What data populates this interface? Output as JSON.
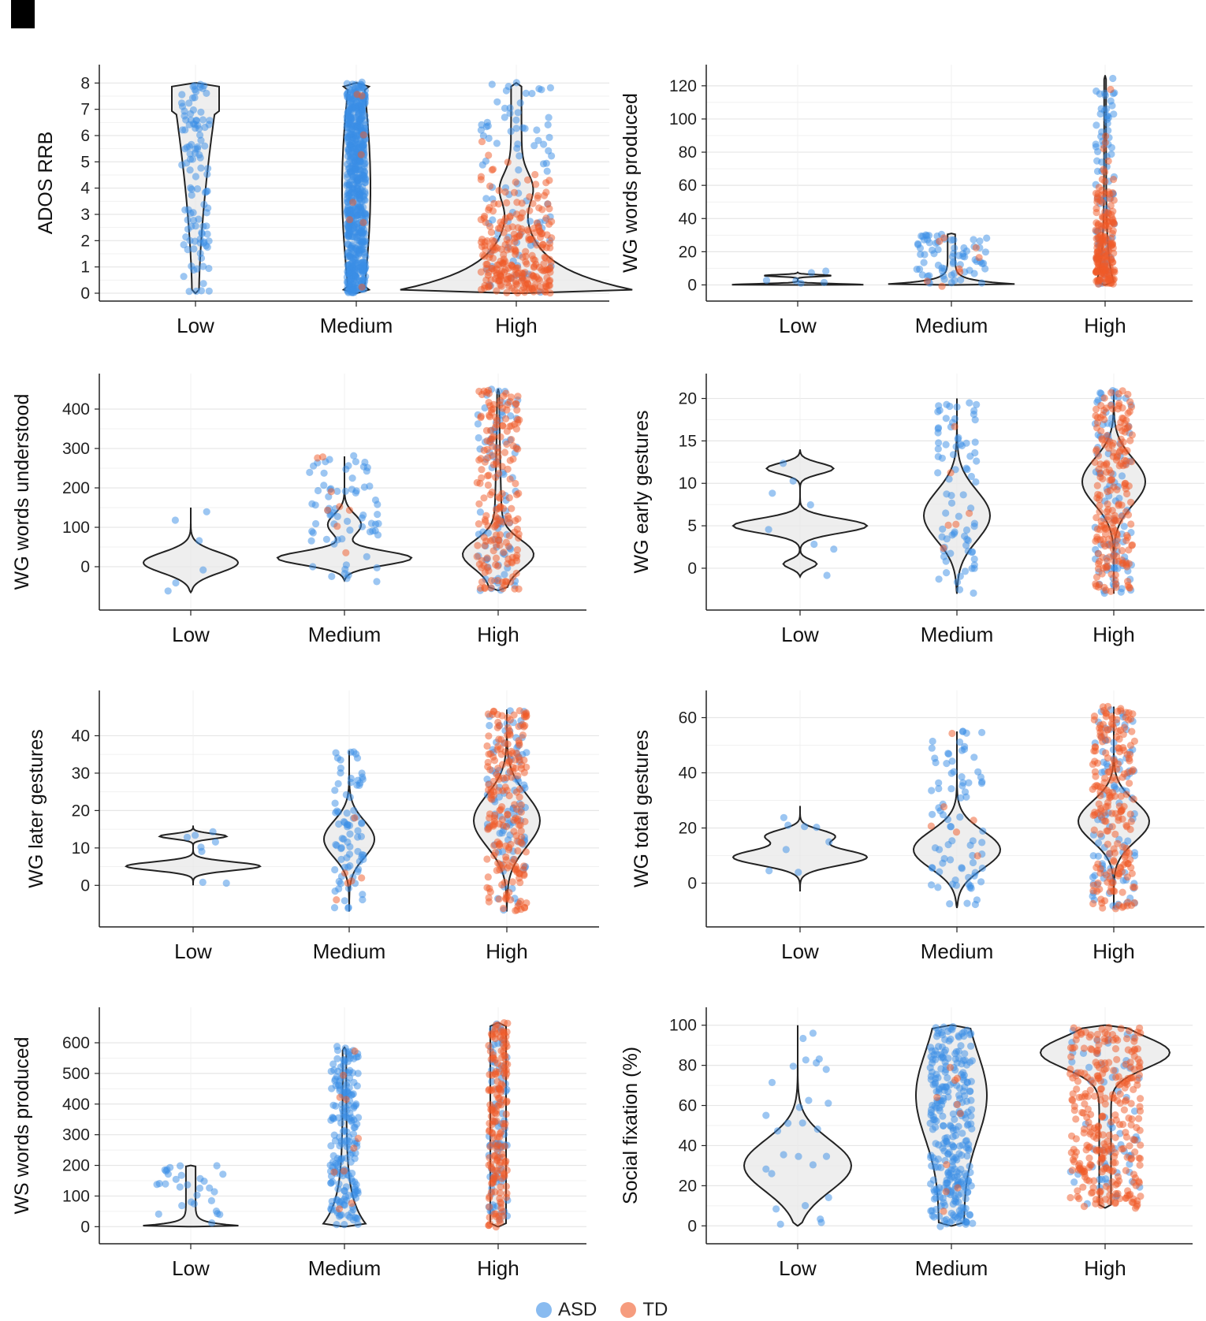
{
  "categories": [
    "Low",
    "Medium",
    "High"
  ],
  "legend": [
    {
      "label": "ASD",
      "color": "#3a8ee6"
    },
    {
      "label": "TD",
      "color": "#f05a28"
    }
  ],
  "colors": {
    "asd": "#3a8ee6",
    "td": "#f05a28",
    "violin_fill": "#e8e8e8",
    "violin_stroke": "#222222",
    "grid": "#e6e6e6"
  },
  "chart_data": [
    {
      "type": "violin+jitter",
      "ylabel": "ADOS RRB",
      "ylim": [
        0,
        8.4
      ],
      "yticks": [
        0,
        1,
        2,
        3,
        4,
        5,
        6,
        7,
        8
      ],
      "categories": [
        "Low",
        "Medium",
        "High"
      ],
      "groups": [
        {
          "category": "Low",
          "range": [
            0,
            8
          ],
          "n_asd": 110,
          "n_td": 0
        },
        {
          "category": "Medium",
          "range": [
            0,
            8
          ],
          "n_asd": 620,
          "n_td": 8
        },
        {
          "category": "High",
          "range": [
            0,
            8
          ],
          "n_asd": 90,
          "n_td": 260
        }
      ]
    },
    {
      "type": "violin+jitter",
      "ylabel": "WG words produced",
      "ylim": [
        -5,
        128
      ],
      "yticks": [
        0,
        20,
        40,
        60,
        80,
        100,
        120
      ],
      "categories": [
        "Low",
        "Medium",
        "High"
      ],
      "groups": [
        {
          "category": "Low",
          "range": [
            0,
            8
          ],
          "n_asd": 6,
          "n_td": 0
        },
        {
          "category": "Medium",
          "range": [
            0,
            31
          ],
          "n_asd": 70,
          "n_td": 8
        },
        {
          "category": "High",
          "range": [
            0,
            126
          ],
          "n_asd": 80,
          "n_td": 180
        }
      ]
    },
    {
      "type": "violin+jitter",
      "ylabel": "WG words understood",
      "ylim": [
        -90,
        470
      ],
      "yticks": [
        0,
        100,
        200,
        300,
        400
      ],
      "categories": [
        "Low",
        "Medium",
        "High"
      ],
      "groups": [
        {
          "category": "Low",
          "range": [
            -65,
            150
          ],
          "n_asd": 6,
          "n_td": 0
        },
        {
          "category": "Medium",
          "range": [
            -35,
            280
          ],
          "n_asd": 70,
          "n_td": 8
        },
        {
          "category": "High",
          "range": [
            -60,
            450
          ],
          "n_asd": 80,
          "n_td": 180
        }
      ]
    },
    {
      "type": "violin+jitter",
      "ylabel": "WG early gestures",
      "ylim": [
        -4,
        22
      ],
      "yticks": [
        0,
        5,
        10,
        15,
        20
      ],
      "categories": [
        "Low",
        "Medium",
        "High"
      ],
      "groups": [
        {
          "category": "Low",
          "range": [
            -1,
            14
          ],
          "n_asd": 8,
          "n_td": 0
        },
        {
          "category": "Medium",
          "range": [
            -3,
            20
          ],
          "n_asd": 80,
          "n_td": 6
        },
        {
          "category": "High",
          "range": [
            -3,
            21
          ],
          "n_asd": 90,
          "n_td": 200
        }
      ]
    },
    {
      "type": "violin+jitter",
      "ylabel": "WG later gestures",
      "ylim": [
        -9,
        50
      ],
      "yticks": [
        0,
        10,
        20,
        30,
        40
      ],
      "categories": [
        "Low",
        "Medium",
        "High"
      ],
      "groups": [
        {
          "category": "Low",
          "range": [
            0,
            16
          ],
          "n_asd": 8,
          "n_td": 0
        },
        {
          "category": "Medium",
          "range": [
            -7,
            36
          ],
          "n_asd": 80,
          "n_td": 6
        },
        {
          "category": "High",
          "range": [
            -7,
            47
          ],
          "n_asd": 90,
          "n_td": 200
        }
      ]
    },
    {
      "type": "violin+jitter",
      "ylabel": "WG total gestures",
      "ylim": [
        -13,
        67
      ],
      "yticks": [
        0,
        20,
        40,
        60
      ],
      "categories": [
        "Low",
        "Medium",
        "High"
      ],
      "groups": [
        {
          "category": "Low",
          "range": [
            -3,
            28
          ],
          "n_asd": 8,
          "n_td": 0
        },
        {
          "category": "Medium",
          "range": [
            -9,
            55
          ],
          "n_asd": 80,
          "n_td": 6
        },
        {
          "category": "High",
          "range": [
            -9,
            64
          ],
          "n_asd": 90,
          "n_td": 200
        }
      ]
    },
    {
      "type": "violin+jitter",
      "ylabel": "WS words produced",
      "ylim": [
        -30,
        690
      ],
      "yticks": [
        0,
        100,
        200,
        300,
        400,
        500,
        600
      ],
      "categories": [
        "Low",
        "Medium",
        "High"
      ],
      "groups": [
        {
          "category": "Low",
          "range": [
            0,
            200
          ],
          "n_asd": 30,
          "n_td": 0
        },
        {
          "category": "Medium",
          "range": [
            0,
            585
          ],
          "n_asd": 200,
          "n_td": 10
        },
        {
          "category": "High",
          "range": [
            0,
            665
          ],
          "n_asd": 70,
          "n_td": 170
        }
      ]
    },
    {
      "type": "violin+jitter",
      "ylabel": "Social fixation (%)",
      "ylim": [
        -5,
        105
      ],
      "yticks": [
        0,
        20,
        40,
        60,
        80,
        100
      ],
      "categories": [
        "Low",
        "Medium",
        "High"
      ],
      "groups": [
        {
          "category": "Low",
          "range": [
            0,
            100
          ],
          "n_asd": 28,
          "n_td": 0
        },
        {
          "category": "Medium",
          "range": [
            0,
            100
          ],
          "n_asd": 300,
          "n_td": 10
        },
        {
          "category": "High",
          "range": [
            9,
            100
          ],
          "n_asd": 60,
          "n_td": 300
        }
      ]
    }
  ]
}
